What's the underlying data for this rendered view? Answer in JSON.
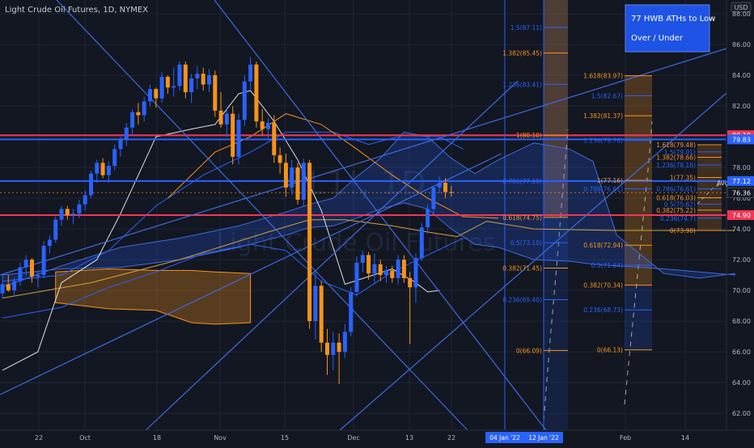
{
  "header": {
    "title": "Light Crude Oil Futures, 1D, NYMEX"
  },
  "watermark": {
    "symbol": "CL1!, 1D",
    "name": "Light Crude Oil Futures"
  },
  "annotation": {
    "line1": "77 HWB ATHs to Low",
    "line2": "Over / Under"
  },
  "axis": {
    "currency": "USD",
    "avg_label": "Avg"
  },
  "colors": {
    "background": "#131722",
    "bull": "#2962ff",
    "bear": "#f7931a",
    "red_line": "#f23657",
    "grid": "#1f2536"
  },
  "chart_data": {
    "type": "candlestick",
    "y_ticks": [
      62,
      64,
      66,
      68,
      70,
      72,
      74,
      76,
      78,
      80,
      82,
      84,
      86,
      88
    ],
    "ylim": [
      60.9,
      88.9
    ],
    "x_ticks": [
      "22",
      "Oct",
      "18",
      "Nov",
      "15",
      "Dec",
      "13",
      "22",
      "Feb",
      "14"
    ],
    "date_markers": [
      "04 Jan '22",
      "12 Jan '22"
    ],
    "price_labels": [
      {
        "value": 80.1,
        "label": "80.10",
        "color": "#f23657"
      },
      {
        "value": 79.83,
        "label": "79.83",
        "color": "#2962ff"
      },
      {
        "value": 77.12,
        "label": "77.12",
        "color": "#2962ff"
      },
      {
        "value": 76.36,
        "label": "76.36",
        "color": "#131722"
      },
      {
        "value": 74.9,
        "label": "74.90",
        "color": "#f23657"
      }
    ],
    "horizontal_lines": [
      {
        "value": 80.1,
        "color": "#f23657"
      },
      {
        "value": 79.83,
        "color": "#2962ff"
      },
      {
        "value": 77.12,
        "color": "#2962ff"
      },
      {
        "value": 74.9,
        "color": "#f23657"
      }
    ],
    "fib_set_1": [
      {
        "label": "1.5(87.11)",
        "value": 87.11
      },
      {
        "label": "1.382(85.45)",
        "value": 85.45
      },
      {
        "label": "1.236(83.41)",
        "value": 83.41
      },
      {
        "label": "1(80.10)",
        "value": 80.1
      },
      {
        "label": "0.786(77.10)",
        "value": 77.1
      },
      {
        "label": "0.618(74.75)",
        "value": 74.75
      },
      {
        "label": "0.5(73.10)",
        "value": 73.1
      },
      {
        "label": "0.382(71.45)",
        "value": 71.45
      },
      {
        "label": "0.236(69.40)",
        "value": 69.4
      },
      {
        "label": "0(66.09)",
        "value": 66.09
      }
    ],
    "fib_set_2": [
      {
        "label": "1.618(83.97)",
        "value": 83.97
      },
      {
        "label": "1.5(82.67)",
        "value": 82.67
      },
      {
        "label": "1.382(81.37)",
        "value": 81.37
      },
      {
        "label": "1.236(79.76)",
        "value": 79.76
      },
      {
        "label": "1(77.16)",
        "value": 77.16
      },
      {
        "label": "0.786(76.61)",
        "value": 76.61
      },
      {
        "label": "0.618(72.94)",
        "value": 72.94
      },
      {
        "label": "0.5(71.64)",
        "value": 71.64
      },
      {
        "label": "0.382(70.34)",
        "value": 70.34
      },
      {
        "label": "0.236(68.73)",
        "value": 68.73
      },
      {
        "label": "0(66.13)",
        "value": 66.13
      }
    ],
    "fib_set_3": [
      {
        "label": "1.618(79.48)",
        "value": 79.48
      },
      {
        "label": "1.5(79.01)",
        "value": 79.01
      },
      {
        "label": "1.382(78.66)",
        "value": 78.66
      },
      {
        "label": "1.236(78.16)",
        "value": 78.16
      },
      {
        "label": "1(77.35)",
        "value": 77.35
      },
      {
        "label": "0.786(76.61)",
        "value": 76.61
      },
      {
        "label": "0.618(76.03)",
        "value": 76.03
      },
      {
        "label": "0.5(75.62)",
        "value": 75.62
      },
      {
        "label": "0.382(75.22)",
        "value": 75.22
      },
      {
        "label": "0.236(74.7)",
        "value": 74.7
      },
      {
        "label": "0(73.90)",
        "value": 73.9
      }
    ],
    "candles": [
      [
        69.8,
        70.6,
        69.5,
        70.4
      ],
      [
        70.4,
        71.0,
        69.9,
        70.0
      ],
      [
        70.0,
        70.8,
        69.6,
        70.6
      ],
      [
        70.6,
        71.8,
        70.3,
        71.5
      ],
      [
        71.5,
        72.3,
        71.0,
        72.0
      ],
      [
        72.0,
        72.1,
        70.5,
        70.9
      ],
      [
        70.9,
        71.3,
        70.2,
        71.0
      ],
      [
        71.0,
        73.2,
        70.8,
        72.9
      ],
      [
        72.9,
        73.6,
        72.4,
        73.3
      ],
      [
        73.3,
        74.8,
        73.1,
        74.6
      ],
      [
        74.6,
        75.5,
        74.2,
        75.3
      ],
      [
        75.3,
        75.5,
        74.6,
        74.9
      ],
      [
        74.9,
        75.3,
        74.3,
        75.0
      ],
      [
        75.0,
        75.9,
        74.7,
        75.6
      ],
      [
        75.6,
        76.5,
        75.2,
        76.2
      ],
      [
        76.2,
        77.8,
        76.0,
        77.6
      ],
      [
        77.6,
        78.5,
        77.0,
        78.3
      ],
      [
        78.3,
        78.6,
        77.3,
        77.5
      ],
      [
        77.5,
        78.4,
        77.0,
        78.1
      ],
      [
        78.1,
        79.5,
        77.8,
        79.2
      ],
      [
        79.2,
        80.0,
        78.7,
        79.8
      ],
      [
        79.8,
        80.9,
        79.4,
        80.6
      ],
      [
        80.6,
        81.8,
        80.1,
        81.6
      ],
      [
        81.6,
        82.2,
        80.8,
        81.4
      ],
      [
        81.4,
        82.6,
        81.0,
        82.3
      ],
      [
        82.3,
        83.4,
        82.0,
        83.1
      ],
      [
        83.1,
        83.2,
        81.9,
        82.5
      ],
      [
        82.5,
        84.2,
        82.2,
        83.9
      ],
      [
        83.9,
        84.0,
        82.8,
        83.2
      ],
      [
        83.2,
        84.5,
        82.6,
        83.3
      ],
      [
        83.3,
        84.9,
        83.0,
        84.7
      ],
      [
        84.7,
        84.9,
        82.5,
        82.9
      ],
      [
        82.9,
        84.1,
        82.2,
        83.8
      ],
      [
        83.8,
        84.6,
        83.1,
        84.1
      ],
      [
        84.1,
        84.5,
        83.0,
        83.4
      ],
      [
        83.4,
        84.4,
        82.9,
        84.0
      ],
      [
        84.0,
        84.3,
        81.3,
        81.7
      ],
      [
        81.7,
        82.9,
        80.6,
        80.8
      ],
      [
        80.8,
        81.9,
        80.0,
        81.5
      ],
      [
        81.5,
        82.0,
        78.2,
        78.7
      ],
      [
        78.7,
        81.5,
        78.2,
        81.1
      ],
      [
        81.1,
        84.0,
        80.7,
        83.6
      ],
      [
        83.6,
        85.2,
        83.0,
        84.7
      ],
      [
        84.7,
        84.9,
        80.6,
        81.0
      ],
      [
        81.0,
        81.8,
        80.1,
        80.5
      ],
      [
        80.5,
        81.2,
        79.8,
        80.9
      ],
      [
        80.9,
        81.4,
        78.3,
        78.8
      ],
      [
        78.8,
        79.3,
        77.6,
        78.3
      ],
      [
        78.3,
        78.9,
        76.1,
        76.7
      ],
      [
        76.7,
        78.5,
        76.2,
        78.0
      ],
      [
        78.0,
        78.3,
        75.6,
        75.9
      ],
      [
        75.9,
        78.6,
        75.5,
        78.3
      ],
      [
        78.3,
        78.5,
        67.5,
        68.0
      ],
      [
        68.0,
        71.2,
        66.8,
        70.3
      ],
      [
        70.3,
        70.6,
        66.0,
        66.6
      ],
      [
        66.6,
        67.5,
        64.5,
        65.8
      ],
      [
        65.8,
        67.3,
        64.8,
        66.6
      ],
      [
        66.6,
        67.2,
        63.9,
        66.0
      ],
      [
        66.0,
        67.8,
        65.6,
        67.3
      ],
      [
        67.3,
        70.2,
        67.0,
        69.9
      ],
      [
        69.9,
        72.2,
        69.6,
        71.8
      ],
      [
        71.8,
        72.6,
        71.2,
        72.3
      ],
      [
        72.3,
        72.5,
        70.7,
        71.1
      ],
      [
        71.1,
        72.4,
        70.4,
        71.7
      ],
      [
        71.7,
        72.0,
        70.6,
        71.0
      ],
      [
        71.0,
        71.6,
        70.5,
        71.3
      ],
      [
        71.3,
        71.6,
        70.5,
        70.8
      ],
      [
        70.8,
        72.3,
        70.4,
        72.0
      ],
      [
        72.0,
        72.3,
        70.5,
        70.8
      ],
      [
        70.8,
        71.2,
        66.5,
        70.2
      ],
      [
        70.2,
        72.4,
        69.2,
        72.1
      ],
      [
        72.1,
        74.4,
        71.9,
        74.1
      ],
      [
        74.1,
        75.6,
        73.7,
        75.3
      ],
      [
        75.3,
        76.8,
        75.0,
        76.7
      ],
      [
        76.7,
        77.4,
        76.3,
        77.0
      ],
      [
        77.0,
        77.3,
        76.0,
        76.4
      ],
      [
        76.4,
        76.8,
        76.1,
        76.36
      ]
    ],
    "ichimoku_cloud_upper": [
      [
        0,
        70.2
      ],
      [
        10,
        71.6
      ],
      [
        20,
        72.8
      ],
      [
        30,
        73.4
      ],
      [
        40,
        74.2
      ],
      [
        48,
        75.1
      ],
      [
        52,
        75.6
      ],
      [
        56,
        76.0
      ],
      [
        60,
        77.4
      ],
      [
        64,
        78.6
      ],
      [
        68,
        80.3
      ],
      [
        72,
        80.0
      ],
      [
        76,
        78.6
      ],
      [
        80,
        77.6
      ],
      [
        84,
        78.5
      ],
      [
        90,
        79.6
      ],
      [
        96,
        79.2
      ],
      [
        100,
        78.4
      ],
      [
        104,
        73.6
      ],
      [
        112,
        71.1
      ],
      [
        118,
        70.8
      ],
      [
        124,
        71.1
      ]
    ],
    "ichimoku_cloud_lower": [
      [
        0,
        71.0
      ],
      [
        10,
        71.4
      ],
      [
        20,
        71.5
      ],
      [
        30,
        72.0
      ],
      [
        40,
        72.8
      ],
      [
        48,
        73.6
      ],
      [
        52,
        74.1
      ],
      [
        56,
        74.2
      ],
      [
        60,
        74.7
      ],
      [
        64,
        75.3
      ],
      [
        68,
        75.7
      ],
      [
        72,
        75.3
      ],
      [
        76,
        74.0
      ],
      [
        80,
        73.0
      ],
      [
        84,
        72.8
      ],
      [
        90,
        72.0
      ],
      [
        96,
        71.9
      ],
      [
        100,
        71.7
      ],
      [
        104,
        71.6
      ],
      [
        112,
        71.4
      ],
      [
        118,
        71.2
      ],
      [
        124,
        71.0
      ]
    ],
    "ribbon_upper": [
      [
        9,
        71.2
      ],
      [
        18,
        71.4
      ],
      [
        26,
        71.3
      ],
      [
        32,
        71.3
      ],
      [
        36,
        71.2
      ],
      [
        42,
        71.1
      ]
    ],
    "ribbon_lower": [
      [
        9,
        69.2
      ],
      [
        18,
        68.8
      ],
      [
        26,
        68.7
      ],
      [
        32,
        67.9
      ],
      [
        36,
        67.8
      ],
      [
        42,
        67.9
      ]
    ],
    "bollinger_upper": [
      [
        0,
        70.6
      ],
      [
        10,
        71.0
      ],
      [
        18,
        72.6
      ],
      [
        26,
        75.5
      ],
      [
        34,
        77.5
      ],
      [
        42,
        79.0
      ],
      [
        48,
        80.3
      ],
      [
        56,
        80.3
      ],
      [
        62,
        79.5
      ],
      [
        68,
        80.1
      ],
      [
        74,
        80.0
      ],
      [
        78,
        79.2
      ]
    ],
    "bollinger_lower": [
      [
        0,
        68.2
      ],
      [
        10,
        68.9
      ],
      [
        18,
        70.2
      ],
      [
        26,
        71.2
      ],
      [
        34,
        72.4
      ],
      [
        42,
        73.0
      ],
      [
        48,
        72.6
      ],
      [
        54,
        70.6
      ],
      [
        60,
        69.7
      ],
      [
        66,
        71.2
      ],
      [
        72,
        72.3
      ],
      [
        78,
        73.4
      ]
    ],
    "sma_orange": [
      [
        28,
        76.0
      ],
      [
        36,
        79.0
      ],
      [
        42,
        80.0
      ],
      [
        48,
        81.5
      ],
      [
        54,
        80.8
      ],
      [
        60,
        79.2
      ],
      [
        66,
        77.5
      ],
      [
        72,
        76.0
      ],
      [
        78,
        74.8
      ],
      [
        84,
        74.7
      ]
    ],
    "sma_yellow": [
      [
        0,
        69.5
      ],
      [
        15,
        70.5
      ],
      [
        30,
        72.0
      ],
      [
        45,
        73.8
      ],
      [
        52,
        74.6
      ],
      [
        58,
        74.6
      ],
      [
        66,
        74.2
      ],
      [
        72,
        73.8
      ],
      [
        77,
        73.5
      ],
      [
        82,
        74.5
      ],
      [
        90,
        74.0
      ],
      [
        104,
        73.9
      ],
      [
        112,
        73.9
      ],
      [
        124,
        73.9
      ]
    ],
    "lagging_white": [
      [
        0,
        64.8
      ],
      [
        6,
        66.0
      ],
      [
        10,
        70.5
      ],
      [
        16,
        72.0
      ],
      [
        20,
        75.0
      ],
      [
        26,
        80.0
      ],
      [
        32,
        80.5
      ],
      [
        36,
        80.8
      ],
      [
        40,
        82.8
      ],
      [
        42,
        83.0
      ],
      [
        46,
        81.0
      ],
      [
        50,
        78.5
      ],
      [
        54,
        75.2
      ],
      [
        58,
        70.4
      ],
      [
        62,
        70.9
      ],
      [
        66,
        71.4
      ],
      [
        70,
        70.5
      ],
      [
        72,
        69.9
      ],
      [
        74,
        70.0
      ]
    ]
  }
}
